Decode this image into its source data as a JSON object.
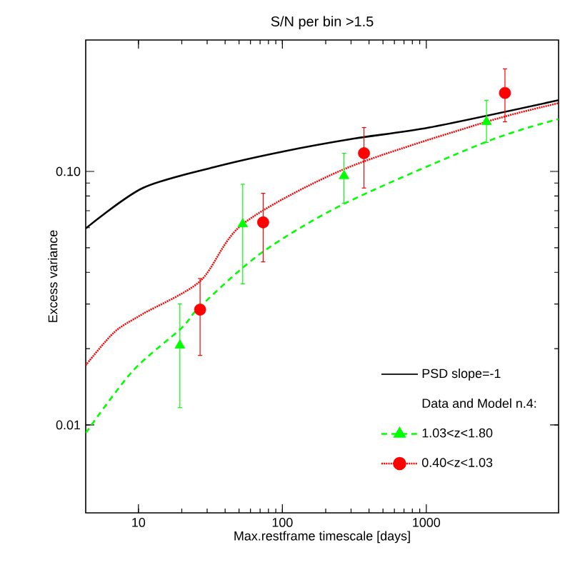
{
  "chart_data": {
    "type": "line",
    "title": "S/N per bin >1.5",
    "xlabel": "Max.restframe timescale [days]",
    "ylabel": "Excess variance",
    "log": "xy",
    "xlim": [
      4.3,
      8300
    ],
    "ylim": [
      0.0045,
      0.33
    ],
    "xticks": [
      10,
      100,
      1000
    ],
    "yticks": [
      0.01,
      {
        "value": 0.1,
        "label": "0.10"
      }
    ],
    "grid": false,
    "legend": "bottom right",
    "legend_title": "Data and Model n.4:",
    "series": [
      {
        "name": "PSD slope=-1",
        "color": "#000000",
        "line_style": "solid",
        "marker": "none",
        "x": [
          4.3,
          10.7,
          33.5,
          102,
          320,
          1047,
          8300
        ],
        "values": [
          0.0596,
          0.086,
          0.104,
          0.12,
          0.135,
          0.149,
          0.191
        ]
      },
      {
        "color": "#00ff00",
        "line_style": "dashed",
        "marker": "none",
        "x": [
          4.3,
          9.1,
          19.9,
          26.8,
          71.8,
          274,
          2620,
          8300
        ],
        "values": [
          0.0093,
          0.0163,
          0.0241,
          0.0293,
          0.0478,
          0.075,
          0.131,
          0.161
        ]
      },
      {
        "color": "#ff0000",
        "line_style": "dotted",
        "marker": "none",
        "x": [
          4.3,
          6.78,
          10.7,
          26.8,
          53,
          274,
          2620,
          8300
        ],
        "values": [
          0.0172,
          0.0232,
          0.0274,
          0.0369,
          0.062,
          0.1026,
          0.157,
          0.186
        ]
      },
      {
        "type": "scatter",
        "name": "1.03<z<1.80",
        "color": "#00ff00",
        "marker": "triangle",
        "x": [
          19.4,
          53,
          268,
          2620
        ],
        "values": [
          0.0206,
          0.062,
          0.096,
          0.157
        ],
        "errors": [
          [
            0.0117,
            0.03
          ],
          [
            0.036,
            0.089
          ],
          [
            0.075,
            0.118
          ],
          [
            0.13,
            0.191
          ]
        ]
      },
      {
        "type": "scatter",
        "name": "0.40<z<1.03",
        "color": "#ff0000",
        "marker": "circle",
        "x": [
          26.8,
          73.5,
          369,
          3520
        ],
        "values": [
          0.0285,
          0.063,
          0.118,
          0.204
        ],
        "errors": [
          [
            0.0188,
            0.0378
          ],
          [
            0.044,
            0.082
          ],
          [
            0.086,
            0.149
          ],
          [
            0.157,
            0.254
          ]
        ]
      }
    ]
  }
}
